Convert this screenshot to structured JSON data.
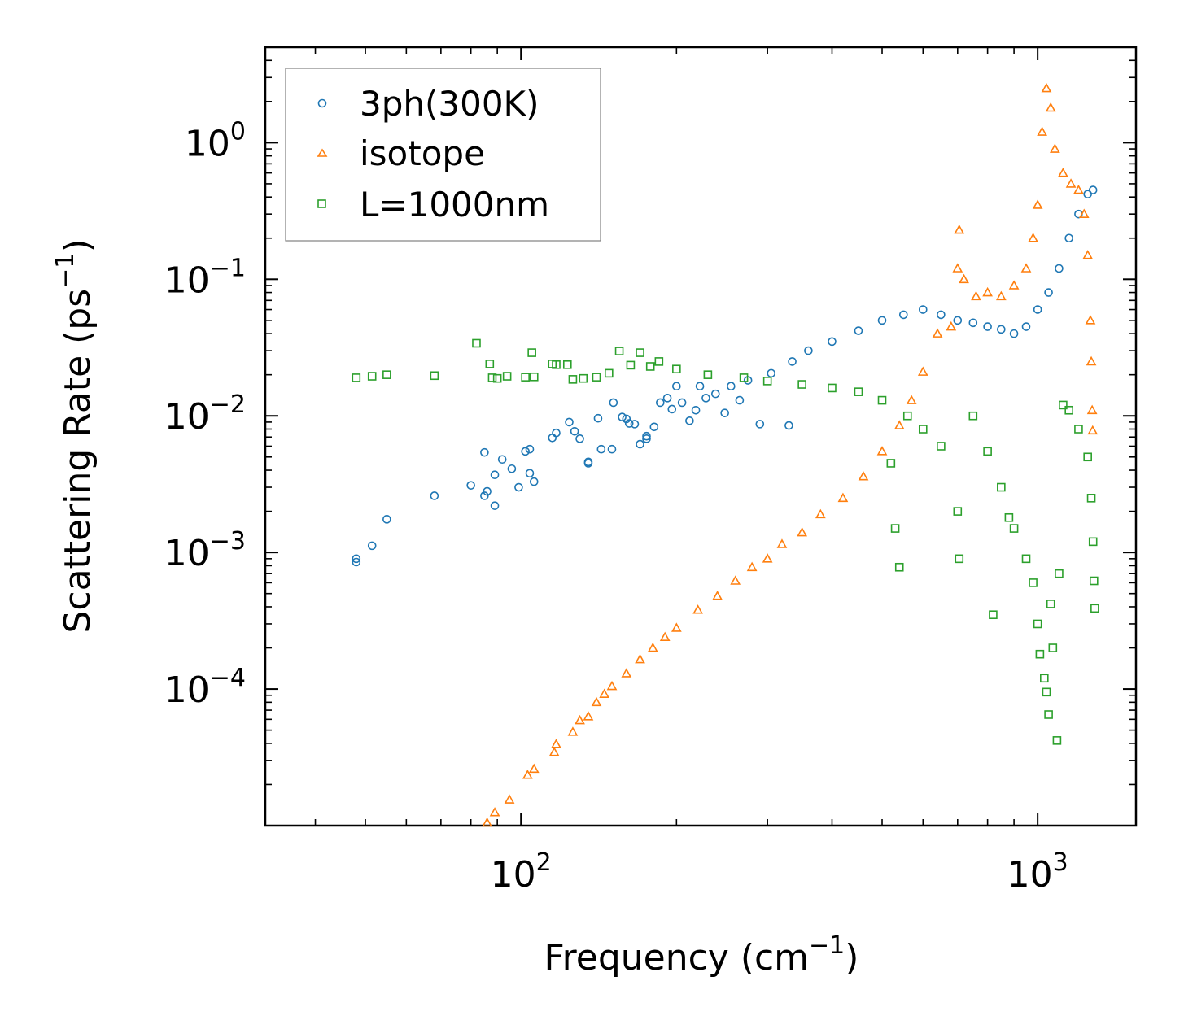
{
  "colors": {
    "3ph": "#1f77b4",
    "isotope": "#ff7f0e",
    "boundary": "#2ca02c",
    "axis": "#000000",
    "legend_border": "#808080"
  },
  "chart_data": {
    "type": "scatter",
    "title": "",
    "xlabel": "Frequency (cm",
    "xlabel_sup": "−1",
    "xlabel_close": ")",
    "ylabel": "Scattering Rate (ps",
    "ylabel_sup": "−1",
    "ylabel_close": ")",
    "xscale": "log",
    "yscale": "log",
    "xlim": [
      32,
      1550
    ],
    "ylim": [
      1e-05,
      5.0
    ],
    "xticks": [
      {
        "value": 100,
        "base": "10",
        "exp": "2"
      },
      {
        "value": 1000,
        "base": "10",
        "exp": "3"
      }
    ],
    "yticks": [
      {
        "value": 1,
        "base": "10",
        "exp": "0"
      },
      {
        "value": 0.1,
        "base": "10",
        "exp": "−1"
      },
      {
        "value": 0.01,
        "base": "10",
        "exp": "−2"
      },
      {
        "value": 0.001,
        "base": "10",
        "exp": "−3"
      },
      {
        "value": 0.0001,
        "base": "10",
        "exp": "−4"
      }
    ],
    "legend_position": "top-left",
    "series": [
      {
        "name": "3ph(300K)",
        "marker": "circle",
        "points": [
          [
            48,
            0.00085
          ],
          [
            48,
            0.0009
          ],
          [
            51.5,
            0.00112
          ],
          [
            55,
            0.00175
          ],
          [
            68,
            0.0026
          ],
          [
            80,
            0.0031
          ],
          [
            85,
            0.0026
          ],
          [
            86,
            0.0028
          ],
          [
            89,
            0.0022
          ],
          [
            85,
            0.0054
          ],
          [
            89,
            0.0037
          ],
          [
            92,
            0.0048
          ],
          [
            96,
            0.0041
          ],
          [
            99,
            0.003
          ],
          [
            104,
            0.0057
          ],
          [
            102,
            0.0055
          ],
          [
            104,
            0.0038
          ],
          [
            106,
            0.0033
          ],
          [
            115,
            0.0069
          ],
          [
            117,
            0.0075
          ],
          [
            124,
            0.009
          ],
          [
            127,
            0.0077
          ],
          [
            130,
            0.0068
          ],
          [
            135,
            0.0045
          ],
          [
            135,
            0.0046
          ],
          [
            141,
            0.0096
          ],
          [
            143,
            0.0057
          ],
          [
            150,
            0.0057
          ],
          [
            151,
            0.0125
          ],
          [
            157,
            0.0098
          ],
          [
            160,
            0.0095
          ],
          [
            162,
            0.0088
          ],
          [
            166,
            0.0087
          ],
          [
            170,
            0.0062
          ],
          [
            175,
            0.0071
          ],
          [
            175,
            0.0068
          ],
          [
            181,
            0.0083
          ],
          [
            186,
            0.0125
          ],
          [
            192,
            0.0135
          ],
          [
            196,
            0.0112
          ],
          [
            200,
            0.0165
          ],
          [
            205,
            0.0125
          ],
          [
            212,
            0.0092
          ],
          [
            218,
            0.011
          ],
          [
            222,
            0.0165
          ],
          [
            228,
            0.0135
          ],
          [
            238,
            0.0145
          ],
          [
            248,
            0.0105
          ],
          [
            255,
            0.0165
          ],
          [
            265,
            0.013
          ],
          [
            275,
            0.0182
          ],
          [
            290,
            0.0087
          ],
          [
            305,
            0.0205
          ],
          [
            330,
            0.0085
          ],
          [
            335,
            0.025
          ],
          [
            360,
            0.03
          ],
          [
            400,
            0.035
          ],
          [
            450,
            0.042
          ],
          [
            500,
            0.05
          ],
          [
            550,
            0.055
          ],
          [
            600,
            0.06
          ],
          [
            650,
            0.055
          ],
          [
            700,
            0.05
          ],
          [
            750,
            0.048
          ],
          [
            800,
            0.045
          ],
          [
            850,
            0.043
          ],
          [
            900,
            0.04
          ],
          [
            950,
            0.045
          ],
          [
            1000,
            0.06
          ],
          [
            1050,
            0.08
          ],
          [
            1100,
            0.12
          ],
          [
            1150,
            0.2
          ],
          [
            1200,
            0.3
          ],
          [
            1250,
            0.42
          ],
          [
            1280,
            0.45
          ]
        ]
      },
      {
        "name": "isotope",
        "marker": "triangle",
        "points": [
          [
            86,
            1.05e-05
          ],
          [
            89,
            1.25e-05
          ],
          [
            95,
            1.55e-05
          ],
          [
            103,
            2.35e-05
          ],
          [
            106,
            2.6e-05
          ],
          [
            116,
            3.45e-05
          ],
          [
            117,
            3.95e-05
          ],
          [
            126,
            4.85e-05
          ],
          [
            130,
            5.9e-05
          ],
          [
            135,
            6.3e-05
          ],
          [
            140,
            8e-05
          ],
          [
            145,
            9.2e-05
          ],
          [
            150,
            0.000105
          ],
          [
            160,
            0.00013
          ],
          [
            170,
            0.000165
          ],
          [
            180,
            0.0002
          ],
          [
            190,
            0.00024
          ],
          [
            200,
            0.00028
          ],
          [
            220,
            0.00038
          ],
          [
            240,
            0.00048
          ],
          [
            260,
            0.00062
          ],
          [
            280,
            0.00078
          ],
          [
            300,
            0.0009
          ],
          [
            320,
            0.00115
          ],
          [
            350,
            0.0014
          ],
          [
            380,
            0.0019
          ],
          [
            420,
            0.0025
          ],
          [
            460,
            0.0036
          ],
          [
            500,
            0.0055
          ],
          [
            540,
            0.0085
          ],
          [
            570,
            0.013
          ],
          [
            600,
            0.021
          ],
          [
            640,
            0.04
          ],
          [
            680,
            0.045
          ],
          [
            700,
            0.12
          ],
          [
            705,
            0.23
          ],
          [
            720,
            0.1
          ],
          [
            760,
            0.075
          ],
          [
            800,
            0.08
          ],
          [
            850,
            0.075
          ],
          [
            900,
            0.09
          ],
          [
            950,
            0.12
          ],
          [
            980,
            0.2
          ],
          [
            1000,
            0.35
          ],
          [
            1020,
            1.2
          ],
          [
            1040,
            2.5
          ],
          [
            1060,
            1.8
          ],
          [
            1080,
            0.9
          ],
          [
            1120,
            0.6
          ],
          [
            1160,
            0.5
          ],
          [
            1200,
            0.45
          ],
          [
            1230,
            0.3
          ],
          [
            1250,
            0.15
          ],
          [
            1265,
            0.05
          ],
          [
            1270,
            0.025
          ],
          [
            1275,
            0.011
          ],
          [
            1278,
            0.0078
          ]
        ]
      },
      {
        "name": "L=1000nm",
        "marker": "square",
        "points": [
          [
            48,
            0.019
          ],
          [
            51.5,
            0.0195
          ],
          [
            55,
            0.02
          ],
          [
            68,
            0.0197
          ],
          [
            82,
            0.034
          ],
          [
            87,
            0.024
          ],
          [
            88,
            0.019
          ],
          [
            90,
            0.0188
          ],
          [
            94,
            0.0195
          ],
          [
            102,
            0.0192
          ],
          [
            106,
            0.0193
          ],
          [
            105,
            0.029
          ],
          [
            115,
            0.024
          ],
          [
            117,
            0.0237
          ],
          [
            123,
            0.0237
          ],
          [
            126,
            0.0185
          ],
          [
            132,
            0.0188
          ],
          [
            140,
            0.0192
          ],
          [
            148,
            0.0205
          ],
          [
            155,
            0.0298
          ],
          [
            163,
            0.0235
          ],
          [
            170,
            0.029
          ],
          [
            178,
            0.023
          ],
          [
            185,
            0.025
          ],
          [
            200,
            0.022
          ],
          [
            230,
            0.02
          ],
          [
            270,
            0.019
          ],
          [
            300,
            0.018
          ],
          [
            350,
            0.017
          ],
          [
            400,
            0.016
          ],
          [
            450,
            0.015
          ],
          [
            500,
            0.013
          ],
          [
            520,
            0.0045
          ],
          [
            530,
            0.0015
          ],
          [
            540,
            0.00078
          ],
          [
            560,
            0.01
          ],
          [
            600,
            0.008
          ],
          [
            650,
            0.006
          ],
          [
            700,
            0.002
          ],
          [
            705,
            0.0009
          ],
          [
            750,
            0.01
          ],
          [
            800,
            0.0055
          ],
          [
            820,
            0.00035
          ],
          [
            850,
            0.003
          ],
          [
            880,
            0.0018
          ],
          [
            900,
            0.0015
          ],
          [
            950,
            0.0009
          ],
          [
            980,
            0.0006
          ],
          [
            1000,
            0.0003
          ],
          [
            1010,
            0.00018
          ],
          [
            1030,
            0.00012
          ],
          [
            1040,
            9.5e-05
          ],
          [
            1050,
            6.5e-05
          ],
          [
            1060,
            0.00042
          ],
          [
            1070,
            0.0002
          ],
          [
            1090,
            4.2e-05
          ],
          [
            1100,
            0.0007
          ],
          [
            1120,
            0.012
          ],
          [
            1150,
            0.011
          ],
          [
            1200,
            0.008
          ],
          [
            1250,
            0.005
          ],
          [
            1270,
            0.0025
          ],
          [
            1280,
            0.0012
          ],
          [
            1285,
            0.00062
          ],
          [
            1290,
            0.00039
          ]
        ]
      }
    ]
  }
}
